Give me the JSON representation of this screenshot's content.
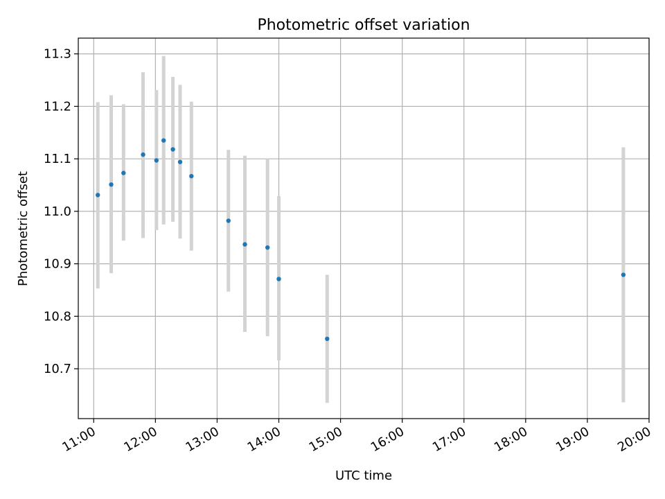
{
  "chart_data": {
    "type": "scatter",
    "title": "Photometric offset variation",
    "xlabel": "UTC time",
    "ylabel": "Photometric offset",
    "grid": true,
    "xlim": [
      "10:45",
      "20:00"
    ],
    "ylim": [
      10.605,
      11.33
    ],
    "x_ticks": [
      "11:00",
      "12:00",
      "13:00",
      "14:00",
      "15:00",
      "16:00",
      "17:00",
      "18:00",
      "19:00",
      "20:00"
    ],
    "y_ticks": [
      "10.7",
      "10.8",
      "10.9",
      "11.0",
      "11.1",
      "11.2",
      "11.3"
    ],
    "marker_color": "#1f77b4",
    "errorbar_color": "#d3d3d3",
    "points": [
      {
        "x": "11:04",
        "y": 11.031,
        "y_low": 10.853,
        "y_high": 11.208
      },
      {
        "x": "11:17",
        "y": 11.051,
        "y_low": 10.882,
        "y_high": 11.221
      },
      {
        "x": "11:29",
        "y": 11.073,
        "y_low": 10.944,
        "y_high": 11.204
      },
      {
        "x": "11:48",
        "y": 11.108,
        "y_low": 10.949,
        "y_high": 11.265
      },
      {
        "x": "12:01",
        "y": 11.097,
        "y_low": 10.964,
        "y_high": 11.231
      },
      {
        "x": "12:08",
        "y": 11.135,
        "y_low": 10.975,
        "y_high": 11.296
      },
      {
        "x": "12:17",
        "y": 11.118,
        "y_low": 10.98,
        "y_high": 11.256
      },
      {
        "x": "12:24",
        "y": 11.094,
        "y_low": 10.948,
        "y_high": 11.241
      },
      {
        "x": "12:35",
        "y": 11.067,
        "y_low": 10.925,
        "y_high": 11.209
      },
      {
        "x": "13:11",
        "y": 10.982,
        "y_low": 10.847,
        "y_high": 11.117
      },
      {
        "x": "13:27",
        "y": 10.937,
        "y_low": 10.77,
        "y_high": 11.106
      },
      {
        "x": "13:49",
        "y": 10.931,
        "y_low": 10.762,
        "y_high": 11.1
      },
      {
        "x": "14:00",
        "y": 10.871,
        "y_low": 10.716,
        "y_high": 11.029
      },
      {
        "x": "14:47",
        "y": 10.757,
        "y_low": 10.635,
        "y_high": 10.879
      },
      {
        "x": "19:35",
        "y": 10.879,
        "y_low": 10.636,
        "y_high": 11.122
      }
    ]
  }
}
